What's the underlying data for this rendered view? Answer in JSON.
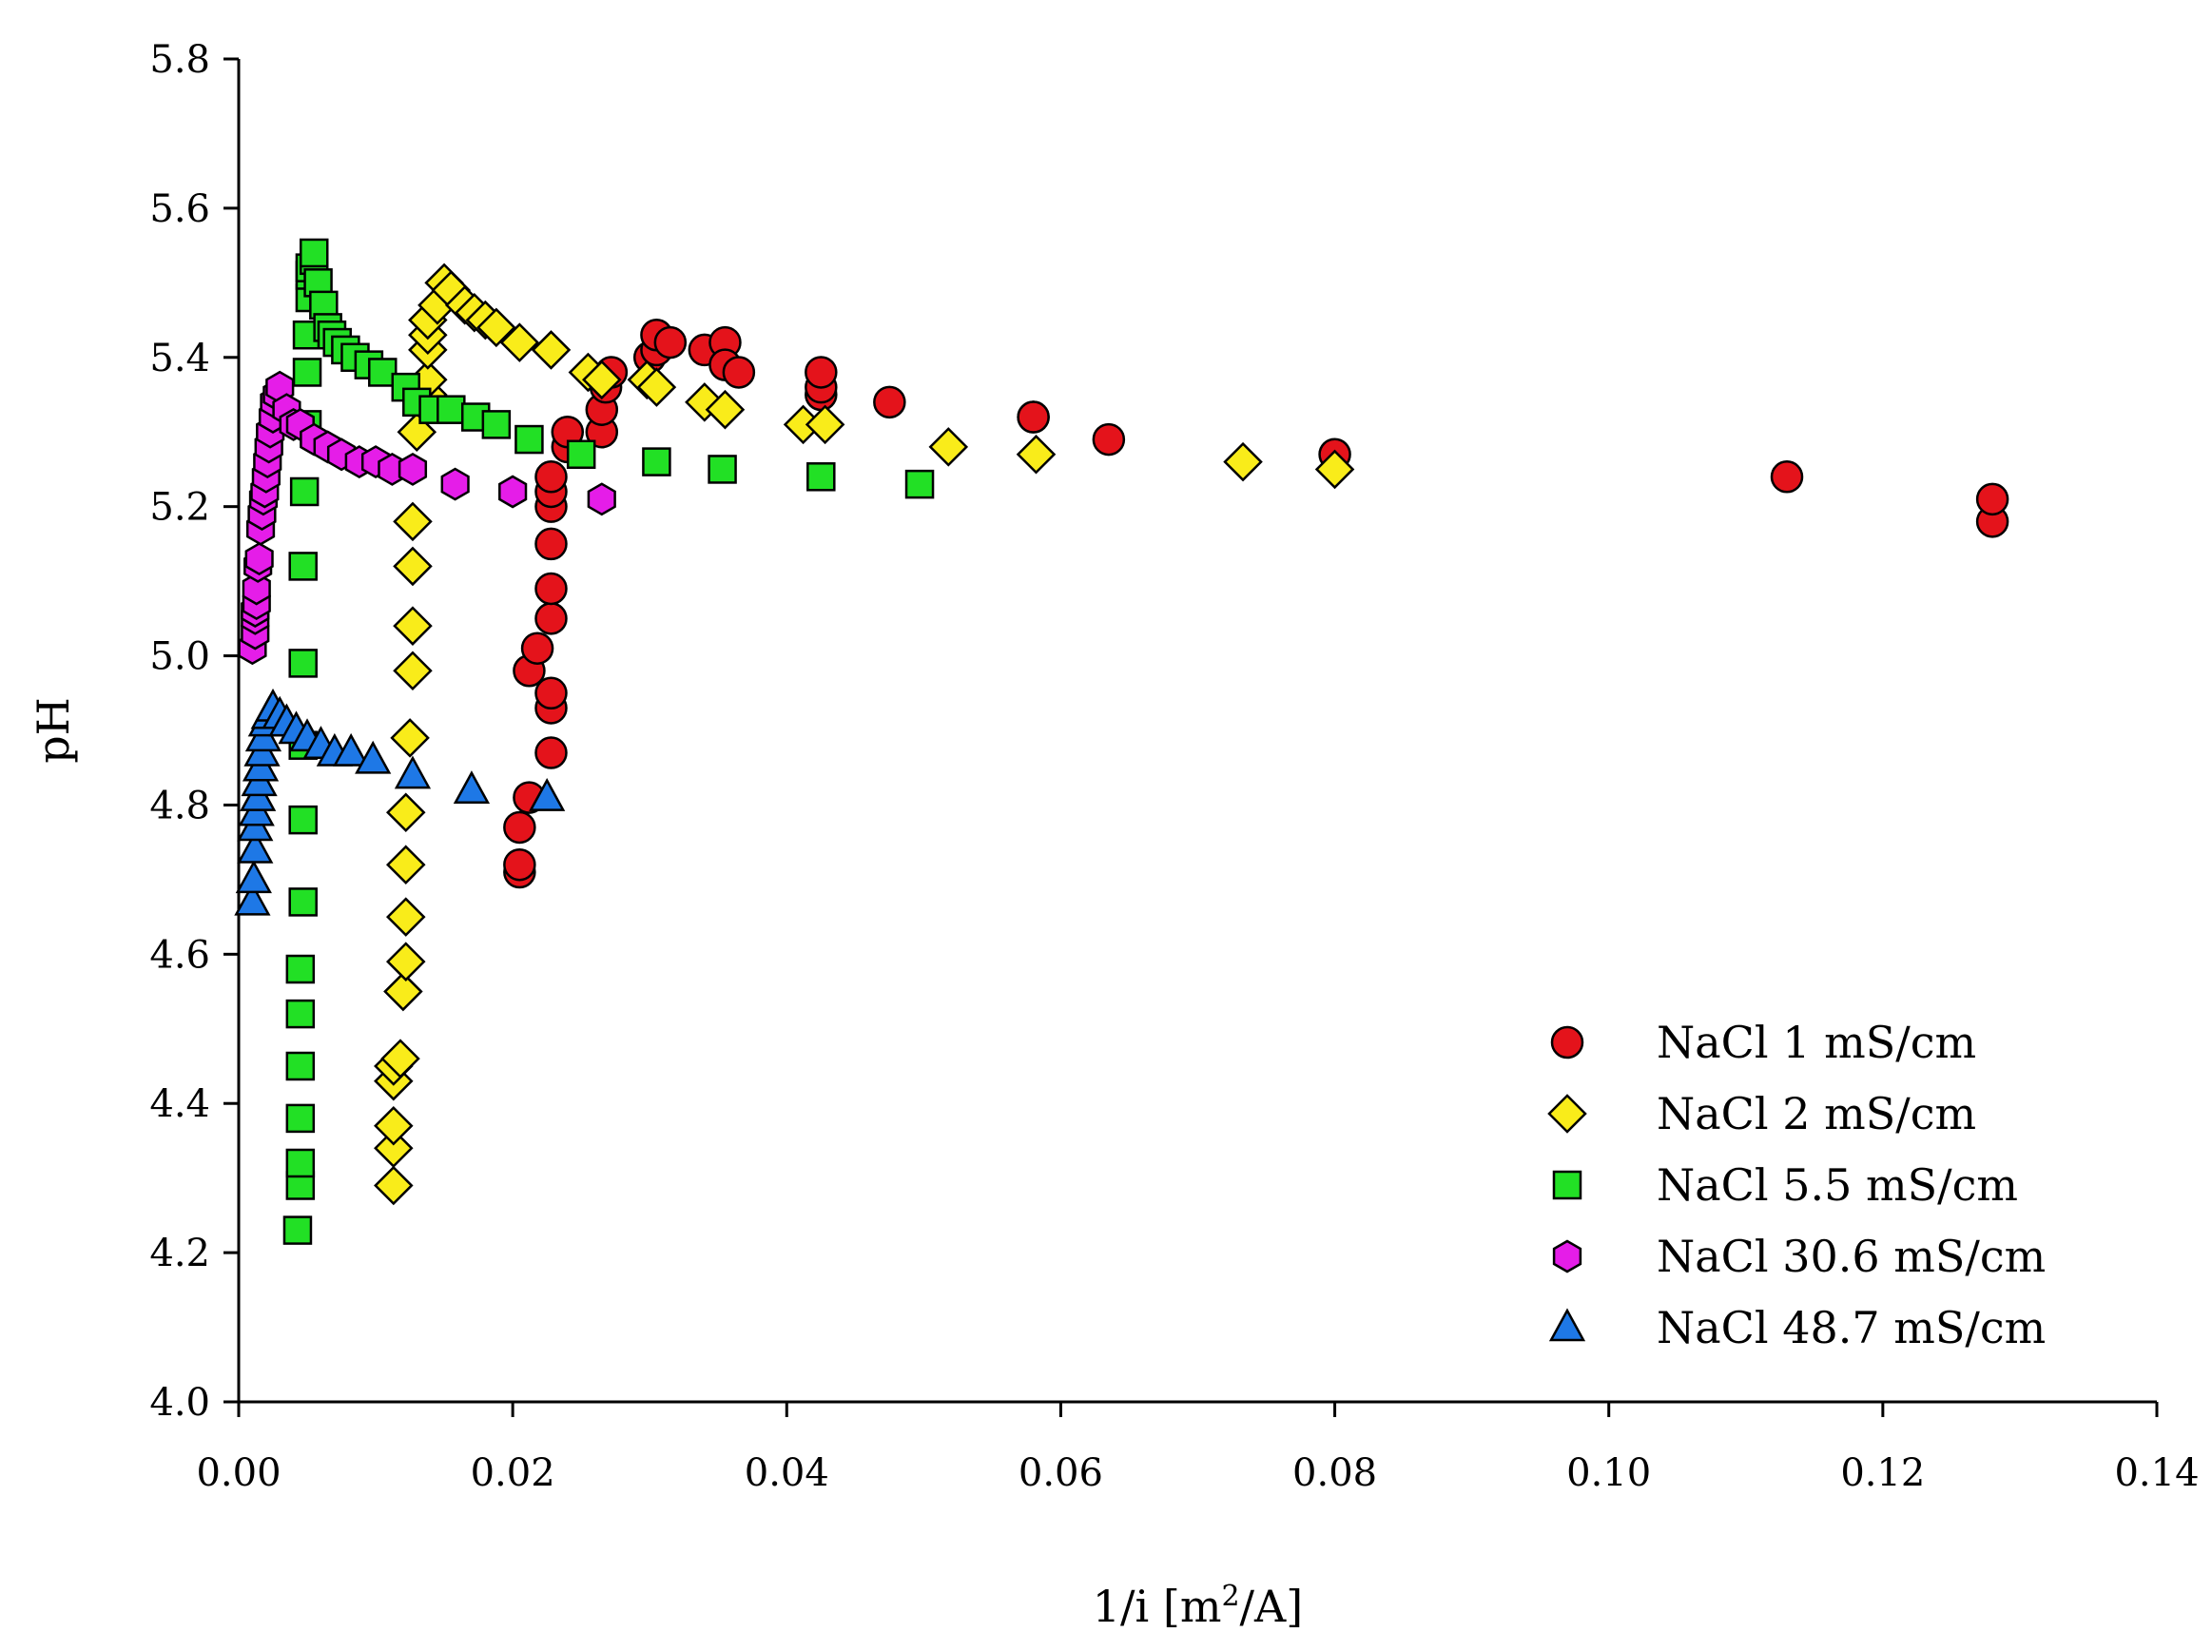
{
  "chart_data": {
    "type": "scatter",
    "title": "",
    "xlabel": "1/i [m",
    "xlabel_sup": "2",
    "xlabel_end": "/A]",
    "ylabel": "pH",
    "xlim": [
      0,
      0.14
    ],
    "ylim": [
      4.0,
      5.8
    ],
    "x_ticks": [
      0,
      0.02,
      0.04,
      0.06,
      0.08,
      0.1,
      0.12,
      0.14
    ],
    "x_tick_labels": [
      "0.00",
      "0.02",
      "0.04",
      "0.06",
      "0.08",
      "0.10",
      "0.12",
      "0.14"
    ],
    "y_ticks": [
      4.0,
      4.2,
      4.4,
      4.6,
      4.8,
      5.0,
      5.2,
      5.4,
      5.6,
      5.8
    ],
    "y_tick_labels": [
      "4.0",
      "4.2",
      "4.4",
      "4.6",
      "4.8",
      "5.0",
      "5.2",
      "5.4",
      "5.6",
      "5.8"
    ],
    "grid": false,
    "legend_position": "bottom-right",
    "series": [
      {
        "name": "NaCl 1 mS/cm",
        "marker": "circle",
        "color": "#e4131b",
        "points": [
          [
            0.0205,
            4.71
          ],
          [
            0.0205,
            4.72
          ],
          [
            0.0205,
            4.77
          ],
          [
            0.0212,
            4.81
          ],
          [
            0.0212,
            4.98
          ],
          [
            0.0218,
            5.01
          ],
          [
            0.0228,
            4.87
          ],
          [
            0.0228,
            4.93
          ],
          [
            0.0228,
            4.95
          ],
          [
            0.0228,
            5.05
          ],
          [
            0.0228,
            5.09
          ],
          [
            0.0228,
            5.15
          ],
          [
            0.0228,
            5.2
          ],
          [
            0.0228,
            5.22
          ],
          [
            0.0228,
            5.24
          ],
          [
            0.024,
            5.28
          ],
          [
            0.024,
            5.3
          ],
          [
            0.0265,
            5.3
          ],
          [
            0.0265,
            5.33
          ],
          [
            0.0268,
            5.36
          ],
          [
            0.0272,
            5.38
          ],
          [
            0.03,
            5.4
          ],
          [
            0.0305,
            5.41
          ],
          [
            0.0305,
            5.43
          ],
          [
            0.0315,
            5.42
          ],
          [
            0.034,
            5.41
          ],
          [
            0.0355,
            5.42
          ],
          [
            0.0355,
            5.39
          ],
          [
            0.0365,
            5.38
          ],
          [
            0.0425,
            5.35
          ],
          [
            0.0425,
            5.36
          ],
          [
            0.0425,
            5.38
          ],
          [
            0.0475,
            5.34
          ],
          [
            0.058,
            5.32
          ],
          [
            0.058,
            5.32
          ],
          [
            0.0635,
            5.29
          ],
          [
            0.08,
            5.27
          ],
          [
            0.113,
            5.24
          ],
          [
            0.128,
            5.18
          ],
          [
            0.128,
            5.21
          ]
        ]
      },
      {
        "name": "NaCl 2 mS/cm",
        "marker": "diamond",
        "color": "#f9ec1a",
        "points": [
          [
            0.0113,
            4.29
          ],
          [
            0.0113,
            4.34
          ],
          [
            0.0113,
            4.37
          ],
          [
            0.0113,
            4.43
          ],
          [
            0.0113,
            4.45
          ],
          [
            0.0118,
            4.46
          ],
          [
            0.012,
            4.55
          ],
          [
            0.0122,
            4.59
          ],
          [
            0.0122,
            4.65
          ],
          [
            0.0122,
            4.72
          ],
          [
            0.0122,
            4.79
          ],
          [
            0.0125,
            4.89
          ],
          [
            0.0127,
            4.98
          ],
          [
            0.0127,
            5.04
          ],
          [
            0.0127,
            5.12
          ],
          [
            0.0127,
            5.18
          ],
          [
            0.013,
            5.3
          ],
          [
            0.0138,
            5.35
          ],
          [
            0.0138,
            5.37
          ],
          [
            0.0138,
            5.41
          ],
          [
            0.0138,
            5.43
          ],
          [
            0.0138,
            5.45
          ],
          [
            0.0145,
            5.47
          ],
          [
            0.015,
            5.5
          ],
          [
            0.0155,
            5.49
          ],
          [
            0.0165,
            5.47
          ],
          [
            0.0172,
            5.46
          ],
          [
            0.018,
            5.45
          ],
          [
            0.0188,
            5.44
          ],
          [
            0.0205,
            5.42
          ],
          [
            0.0228,
            5.41
          ],
          [
            0.0255,
            5.38
          ],
          [
            0.0265,
            5.37
          ],
          [
            0.0298,
            5.37
          ],
          [
            0.0305,
            5.36
          ],
          [
            0.034,
            5.34
          ],
          [
            0.0355,
            5.33
          ],
          [
            0.0412,
            5.31
          ],
          [
            0.0428,
            5.31
          ],
          [
            0.0518,
            5.28
          ],
          [
            0.0582,
            5.27
          ],
          [
            0.0733,
            5.26
          ],
          [
            0.08,
            5.25
          ]
        ]
      },
      {
        "name": "NaCl 5.5 mS/cm",
        "marker": "square",
        "color": "#22e025",
        "points": [
          [
            0.0043,
            4.23
          ],
          [
            0.0045,
            4.29
          ],
          [
            0.0045,
            4.32
          ],
          [
            0.0045,
            4.38
          ],
          [
            0.0045,
            4.45
          ],
          [
            0.0045,
            4.52
          ],
          [
            0.0045,
            4.58
          ],
          [
            0.0047,
            4.67
          ],
          [
            0.0047,
            4.78
          ],
          [
            0.0047,
            4.88
          ],
          [
            0.0047,
            4.99
          ],
          [
            0.0047,
            5.12
          ],
          [
            0.0048,
            5.22
          ],
          [
            0.005,
            5.31
          ],
          [
            0.005,
            5.38
          ],
          [
            0.005,
            5.43
          ],
          [
            0.0052,
            5.48
          ],
          [
            0.0052,
            5.51
          ],
          [
            0.0052,
            5.52
          ],
          [
            0.0055,
            5.53
          ],
          [
            0.0055,
            5.54
          ],
          [
            0.0058,
            5.5
          ],
          [
            0.0062,
            5.47
          ],
          [
            0.0065,
            5.44
          ],
          [
            0.0068,
            5.43
          ],
          [
            0.0072,
            5.42
          ],
          [
            0.0078,
            5.41
          ],
          [
            0.0085,
            5.4
          ],
          [
            0.0095,
            5.39
          ],
          [
            0.0105,
            5.38
          ],
          [
            0.0122,
            5.36
          ],
          [
            0.013,
            5.34
          ],
          [
            0.0142,
            5.33
          ],
          [
            0.0155,
            5.33
          ],
          [
            0.0173,
            5.32
          ],
          [
            0.0188,
            5.31
          ],
          [
            0.0212,
            5.29
          ],
          [
            0.025,
            5.27
          ],
          [
            0.0305,
            5.26
          ],
          [
            0.0353,
            5.25
          ],
          [
            0.0425,
            5.24
          ],
          [
            0.0497,
            5.23
          ]
        ]
      },
      {
        "name": "NaCl 30.6 mS/cm",
        "marker": "hexagon",
        "color": "#e51de8",
        "points": [
          [
            0.001,
            5.01
          ],
          [
            0.0012,
            5.03
          ],
          [
            0.0012,
            5.05
          ],
          [
            0.0012,
            5.06
          ],
          [
            0.0013,
            5.07
          ],
          [
            0.0013,
            5.09
          ],
          [
            0.0014,
            5.12
          ],
          [
            0.0015,
            5.13
          ],
          [
            0.0016,
            5.17
          ],
          [
            0.0017,
            5.19
          ],
          [
            0.0018,
            5.21
          ],
          [
            0.0019,
            5.22
          ],
          [
            0.002,
            5.24
          ],
          [
            0.0021,
            5.26
          ],
          [
            0.0022,
            5.28
          ],
          [
            0.0023,
            5.3
          ],
          [
            0.0025,
            5.32
          ],
          [
            0.0026,
            5.34
          ],
          [
            0.0028,
            5.35
          ],
          [
            0.003,
            5.36
          ],
          [
            0.0035,
            5.33
          ],
          [
            0.004,
            5.31
          ],
          [
            0.0045,
            5.31
          ],
          [
            0.0055,
            5.29
          ],
          [
            0.0065,
            5.28
          ],
          [
            0.0075,
            5.27
          ],
          [
            0.0088,
            5.26
          ],
          [
            0.01,
            5.26
          ],
          [
            0.0112,
            5.25
          ],
          [
            0.0127,
            5.25
          ],
          [
            0.0158,
            5.23
          ],
          [
            0.02,
            5.22
          ],
          [
            0.0265,
            5.21
          ]
        ]
      },
      {
        "name": "NaCl 48.7 mS/cm",
        "marker": "triangle",
        "color": "#1e78e6",
        "points": [
          [
            0.001,
            4.67
          ],
          [
            0.0011,
            4.7
          ],
          [
            0.0012,
            4.74
          ],
          [
            0.0012,
            4.77
          ],
          [
            0.0013,
            4.79
          ],
          [
            0.0014,
            4.81
          ],
          [
            0.0015,
            4.83
          ],
          [
            0.0016,
            4.85
          ],
          [
            0.0017,
            4.87
          ],
          [
            0.0018,
            4.89
          ],
          [
            0.002,
            4.91
          ],
          [
            0.0022,
            4.92
          ],
          [
            0.0025,
            4.93
          ],
          [
            0.003,
            4.92
          ],
          [
            0.0035,
            4.91
          ],
          [
            0.0042,
            4.9
          ],
          [
            0.005,
            4.89
          ],
          [
            0.006,
            4.88
          ],
          [
            0.007,
            4.87
          ],
          [
            0.0082,
            4.87
          ],
          [
            0.0098,
            4.86
          ],
          [
            0.0127,
            4.84
          ],
          [
            0.017,
            4.82
          ],
          [
            0.0225,
            4.81
          ]
        ]
      }
    ]
  }
}
